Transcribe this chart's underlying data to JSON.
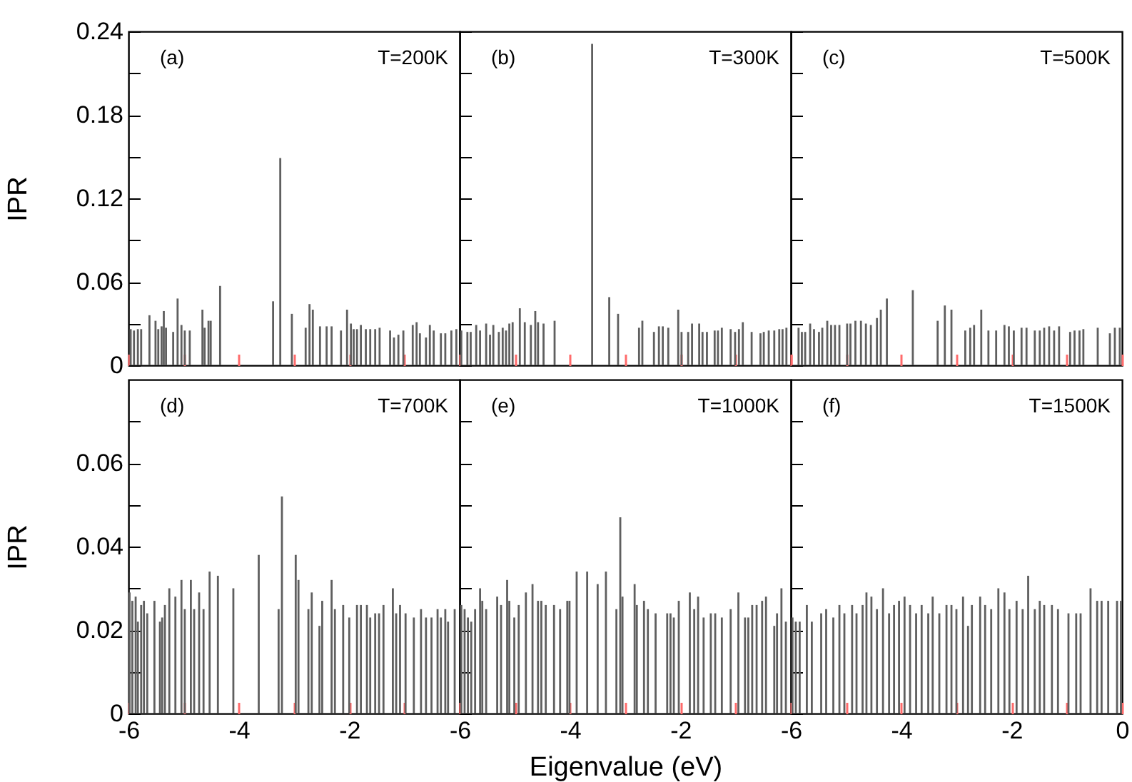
{
  "chart_data": [
    {
      "type": "bar",
      "color": "#5f5f5f",
      "ylabel": "IPR",
      "annotations": [
        "(a)",
        "T=200K"
      ],
      "tick_labels": "y",
      "xlim": [
        -6,
        0
      ],
      "xticks": [
        -6,
        -4,
        -2,
        {
          "value": 0,
          "label": null
        },
        {
          "value": -5,
          "label": null
        },
        {
          "value": -3,
          "label": null
        },
        {
          "value": -1,
          "label": null
        }
      ],
      "ylim": [
        0,
        0.24
      ],
      "yticks": [
        0,
        0.06,
        0.12,
        0.18,
        0.24,
        {
          "value": 0.03,
          "label": null
        },
        {
          "value": 0.09,
          "label": null
        },
        {
          "value": 0.15,
          "label": null
        },
        {
          "value": 0.21,
          "label": null
        }
      ],
      "x": [
        -5.96,
        -5.9,
        -5.83,
        -5.77,
        -5.62,
        -5.51,
        -5.46,
        -5.4,
        -5.36,
        -5.32,
        -5.19,
        -5.11,
        -5.04,
        -4.98,
        -4.89,
        -4.66,
        -4.62,
        -4.55,
        -4.51,
        -4.34,
        -3.38,
        -3.25,
        -3.04,
        -2.79,
        -2.72,
        -2.66,
        -2.53,
        -2.41,
        -2.32,
        -2.15,
        -2.04,
        -1.97,
        -1.92,
        -1.86,
        -1.79,
        -1.7,
        -1.62,
        -1.53,
        -1.45,
        -1.26,
        -1.19,
        -1.11,
        -1.02,
        -0.85,
        -0.78,
        -0.72,
        -0.61,
        -0.54,
        -0.47,
        -0.34,
        -0.26,
        -0.15,
        -0.06
      ],
      "values": [
        0.026,
        0.025,
        0.026,
        0.026,
        0.036,
        0.032,
        0.026,
        0.028,
        0.039,
        0.027,
        0.024,
        0.048,
        0.029,
        0.025,
        0.025,
        0.04,
        0.027,
        0.032,
        0.032,
        0.057,
        0.046,
        0.149,
        0.037,
        0.027,
        0.044,
        0.04,
        0.028,
        0.028,
        0.028,
        0.025,
        0.04,
        0.03,
        0.026,
        0.026,
        0.029,
        0.026,
        0.026,
        0.026,
        0.027,
        0.025,
        0.02,
        0.022,
        0.025,
        0.029,
        0.031,
        0.023,
        0.02,
        0.029,
        0.025,
        0.023,
        0.023,
        0.025,
        0.026
      ]
    },
    {
      "type": "bar",
      "color": "#5f5f5f",
      "annotations": [
        "(b)",
        "T=300K"
      ],
      "tick_labels": false,
      "xlim": [
        -6,
        0
      ],
      "xticks": [
        -6,
        -4,
        -2,
        {
          "value": 0,
          "label": null
        },
        {
          "value": -5,
          "label": null
        },
        {
          "value": -3,
          "label": null
        },
        {
          "value": -1,
          "label": null
        }
      ],
      "ylim": [
        0,
        0.24
      ],
      "yticks": [
        0,
        0.06,
        0.12,
        0.18,
        0.24,
        {
          "value": 0.03,
          "label": null
        },
        {
          "value": 0.09,
          "label": null
        },
        {
          "value": 0.15,
          "label": null
        },
        {
          "value": 0.21,
          "label": null
        }
      ],
      "x": [
        -5.97,
        -5.86,
        -5.8,
        -5.7,
        -5.63,
        -5.52,
        -5.45,
        -5.39,
        -5.29,
        -5.22,
        -5.16,
        -5.1,
        -5.04,
        -4.91,
        -4.82,
        -4.71,
        -4.63,
        -4.58,
        -4.48,
        -4.28,
        -3.6,
        -3.29,
        -3.13,
        -2.75,
        -2.69,
        -2.48,
        -2.39,
        -2.32,
        -2.22,
        -2.04,
        -1.98,
        -1.86,
        -1.79,
        -1.66,
        -1.6,
        -1.52,
        -1.38,
        -1.32,
        -1.25,
        -1.09,
        -1.01,
        -0.94,
        -0.87,
        -0.71,
        -0.55,
        -0.49,
        -0.4,
        -0.3,
        -0.21,
        -0.15,
        -0.08
      ],
      "values": [
        0.025,
        0.024,
        0.024,
        0.029,
        0.025,
        0.03,
        0.022,
        0.029,
        0.024,
        0.027,
        0.025,
        0.03,
        0.031,
        0.041,
        0.031,
        0.029,
        0.039,
        0.031,
        0.03,
        0.032,
        0.231,
        0.049,
        0.037,
        0.027,
        0.032,
        0.024,
        0.028,
        0.028,
        0.027,
        0.04,
        0.024,
        0.024,
        0.03,
        0.03,
        0.024,
        0.024,
        0.025,
        0.025,
        0.027,
        0.026,
        0.024,
        0.026,
        0.031,
        0.024,
        0.023,
        0.024,
        0.025,
        0.025,
        0.026,
        0.026,
        0.027
      ]
    },
    {
      "type": "bar",
      "color": "#5f5f5f",
      "annotations": [
        "(c)",
        "T=500K"
      ],
      "tick_labels": false,
      "xlim": [
        -6,
        0
      ],
      "xticks": [
        -6,
        -4,
        -2,
        0,
        {
          "value": -5,
          "label": null
        },
        {
          "value": -3,
          "label": null
        },
        {
          "value": -1,
          "label": null
        }
      ],
      "ylim": [
        0,
        0.24
      ],
      "yticks": [
        0,
        0.06,
        0.12,
        0.18,
        0.24,
        {
          "value": 0.03,
          "label": null
        },
        {
          "value": 0.09,
          "label": null
        },
        {
          "value": 0.15,
          "label": null
        },
        {
          "value": 0.21,
          "label": null
        }
      ],
      "x": [
        -5.86,
        -5.8,
        -5.74,
        -5.65,
        -5.58,
        -5.49,
        -5.43,
        -5.34,
        -5.27,
        -5.2,
        -5.12,
        -4.98,
        -4.92,
        -4.83,
        -4.73,
        -4.64,
        -4.55,
        -4.44,
        -4.37,
        -4.26,
        -3.79,
        -3.34,
        -3.21,
        -3.09,
        -2.84,
        -2.75,
        -2.68,
        -2.55,
        -2.42,
        -2.28,
        -2.13,
        -2.05,
        -1.96,
        -1.82,
        -1.73,
        -1.58,
        -1.49,
        -1.41,
        -1.32,
        -1.23,
        -1.14,
        -0.94,
        -0.86,
        -0.77,
        -0.7,
        -0.44,
        -0.22,
        -0.13,
        -0.04
      ],
      "values": [
        0.027,
        0.024,
        0.024,
        0.03,
        0.026,
        0.024,
        0.027,
        0.032,
        0.029,
        0.029,
        0.029,
        0.03,
        0.03,
        0.032,
        0.032,
        0.03,
        0.029,
        0.034,
        0.04,
        0.048,
        0.054,
        0.032,
        0.043,
        0.04,
        0.025,
        0.027,
        0.029,
        0.04,
        0.025,
        0.025,
        0.029,
        0.028,
        0.025,
        0.027,
        0.027,
        0.025,
        0.025,
        0.027,
        0.028,
        0.025,
        0.028,
        0.024,
        0.025,
        0.025,
        0.026,
        0.027,
        0.023,
        0.027,
        0.027
      ]
    },
    {
      "type": "bar",
      "color": "#5f5f5f",
      "ylabel": "IPR",
      "annotations": [
        "(d)",
        "T=700K"
      ],
      "xlim": [
        -6,
        0
      ],
      "xticks": [
        -6,
        -4,
        -2,
        {
          "value": 0,
          "label": null
        },
        {
          "value": -5,
          "label": null
        },
        {
          "value": -3,
          "label": null
        },
        {
          "value": -1,
          "label": null
        }
      ],
      "ylim": [
        0,
        0.08
      ],
      "yticks": [
        0,
        0.02,
        0.04,
        0.06,
        {
          "value": 0.01,
          "label": null
        },
        {
          "value": 0.03,
          "label": null
        },
        {
          "value": 0.05,
          "label": null
        },
        {
          "value": 0.07,
          "label": null
        }
      ],
      "x": [
        -5.98,
        -5.93,
        -5.87,
        -5.83,
        -5.77,
        -5.72,
        -5.66,
        -5.53,
        -5.43,
        -5.39,
        -5.34,
        -5.26,
        -5.15,
        -5.04,
        -4.98,
        -4.87,
        -4.81,
        -4.72,
        -4.64,
        -4.53,
        -4.38,
        -4.1,
        -3.64,
        -3.28,
        -3.22,
        -2.97,
        -2.92,
        -2.74,
        -2.68,
        -2.54,
        -2.49,
        -2.32,
        -2.26,
        -2.11,
        -2.0,
        -1.86,
        -1.79,
        -1.68,
        -1.62,
        -1.53,
        -1.46,
        -1.38,
        -1.21,
        -1.15,
        -1.08,
        -0.98,
        -0.83,
        -0.7,
        -0.61,
        -0.51,
        -0.4,
        -0.34,
        -0.26,
        -0.21,
        -0.09
      ],
      "values": [
        0.029,
        0.027,
        0.028,
        0.022,
        0.026,
        0.027,
        0.024,
        0.027,
        0.022,
        0.023,
        0.026,
        0.03,
        0.028,
        0.032,
        0.025,
        0.032,
        0.025,
        0.029,
        0.025,
        0.034,
        0.033,
        0.03,
        0.038,
        0.025,
        0.052,
        0.038,
        0.032,
        0.025,
        0.029,
        0.021,
        0.027,
        0.032,
        0.025,
        0.026,
        0.023,
        0.026,
        0.026,
        0.026,
        0.023,
        0.024,
        0.024,
        0.026,
        0.03,
        0.024,
        0.026,
        0.024,
        0.023,
        0.025,
        0.023,
        0.023,
        0.025,
        0.023,
        0.025,
        0.022,
        0.025
      ]
    },
    {
      "type": "bar",
      "color": "#5f5f5f",
      "xlabel": "Eigenvalue (eV)",
      "annotations": [
        "(e)",
        "T=1000K"
      ],
      "tick_labels": "x",
      "xlim": [
        -6,
        0
      ],
      "xticks": [
        -6,
        -4,
        -2,
        {
          "value": 0,
          "label": null
        },
        {
          "value": -5,
          "label": null
        },
        {
          "value": -3,
          "label": null
        },
        {
          "value": -1,
          "label": null
        }
      ],
      "ylim": [
        0,
        0.08
      ],
      "yticks": [
        0,
        0.02,
        0.04,
        0.06,
        {
          "value": 0.01,
          "label": null
        },
        {
          "value": 0.03,
          "label": null
        },
        {
          "value": 0.05,
          "label": null
        },
        {
          "value": 0.07,
          "label": null
        }
      ],
      "x": [
        -5.97,
        -5.91,
        -5.85,
        -5.79,
        -5.72,
        -5.63,
        -5.59,
        -5.52,
        -5.32,
        -5.25,
        -5.14,
        -5.1,
        -5.01,
        -4.93,
        -4.8,
        -4.68,
        -4.58,
        -4.52,
        -4.44,
        -4.29,
        -4.18,
        -4.05,
        -4.01,
        -3.88,
        -3.69,
        -3.5,
        -3.35,
        -3.16,
        -3.09,
        -3.05,
        -2.83,
        -2.79,
        -2.66,
        -2.59,
        -2.45,
        -2.24,
        -2.18,
        -2.12,
        -2.03,
        -1.83,
        -1.75,
        -1.68,
        -1.58,
        -1.45,
        -1.37,
        -1.25,
        -1.09,
        -0.95,
        -0.83,
        -0.77,
        -0.7,
        -0.62,
        -0.52,
        -0.45,
        -0.3,
        -0.25,
        -0.17,
        -0.09
      ],
      "values": [
        0.026,
        0.025,
        0.023,
        0.022,
        0.025,
        0.03,
        0.027,
        0.025,
        0.028,
        0.026,
        0.032,
        0.027,
        0.023,
        0.026,
        0.029,
        0.031,
        0.027,
        0.027,
        0.026,
        0.026,
        0.025,
        0.027,
        0.027,
        0.034,
        0.034,
        0.031,
        0.034,
        0.025,
        0.047,
        0.028,
        0.031,
        0.026,
        0.027,
        0.025,
        0.024,
        0.024,
        0.024,
        0.023,
        0.027,
        0.029,
        0.025,
        0.028,
        0.023,
        0.024,
        0.024,
        0.023,
        0.025,
        0.029,
        0.023,
        0.023,
        0.026,
        0.026,
        0.027,
        0.028,
        0.021,
        0.024,
        0.03,
        0.022
      ]
    },
    {
      "type": "bar",
      "color": "#5f5f5f",
      "annotations": [
        "(f)",
        "T=1500K"
      ],
      "tick_labels": "x",
      "xlim": [
        -6,
        0
      ],
      "xticks": [
        -6,
        -4,
        -2,
        0,
        {
          "value": -5,
          "label": null
        },
        {
          "value": -3,
          "label": null
        },
        {
          "value": -1,
          "label": null
        }
      ],
      "ylim": [
        0,
        0.08
      ],
      "yticks": [
        0,
        0.02,
        0.04,
        0.06,
        {
          "value": 0.01,
          "label": null
        },
        {
          "value": 0.03,
          "label": null
        },
        {
          "value": 0.05,
          "label": null
        },
        {
          "value": 0.07,
          "label": null
        }
      ],
      "x": [
        -5.97,
        -5.91,
        -5.84,
        -5.71,
        -5.62,
        -5.45,
        -5.36,
        -5.23,
        -5.12,
        -5.03,
        -4.89,
        -4.81,
        -4.7,
        -4.63,
        -4.54,
        -4.44,
        -4.33,
        -4.22,
        -4.13,
        -4.04,
        -3.94,
        -3.84,
        -3.73,
        -3.63,
        -3.51,
        -3.43,
        -3.31,
        -3.18,
        -3.09,
        -3.0,
        -2.88,
        -2.79,
        -2.72,
        -2.57,
        -2.48,
        -2.37,
        -2.24,
        -2.13,
        -2.04,
        -1.91,
        -1.8,
        -1.7,
        -1.58,
        -1.49,
        -1.41,
        -1.27,
        -1.16,
        -0.97,
        -0.83,
        -0.75,
        -0.57,
        -0.45,
        -0.37,
        -0.25,
        -0.09,
        -0.02
      ],
      "values": [
        0.023,
        0.022,
        0.022,
        0.026,
        0.022,
        0.024,
        0.025,
        0.023,
        0.026,
        0.024,
        0.026,
        0.024,
        0.026,
        0.029,
        0.028,
        0.025,
        0.03,
        0.024,
        0.026,
        0.027,
        0.028,
        0.026,
        0.024,
        0.026,
        0.024,
        0.028,
        0.024,
        0.026,
        0.026,
        0.025,
        0.028,
        0.021,
        0.026,
        0.028,
        0.026,
        0.025,
        0.03,
        0.029,
        0.025,
        0.027,
        0.025,
        0.033,
        0.025,
        0.027,
        0.026,
        0.026,
        0.025,
        0.024,
        0.024,
        0.024,
        0.03,
        0.027,
        0.027,
        0.027,
        0.027,
        0.027
      ]
    }
  ]
}
